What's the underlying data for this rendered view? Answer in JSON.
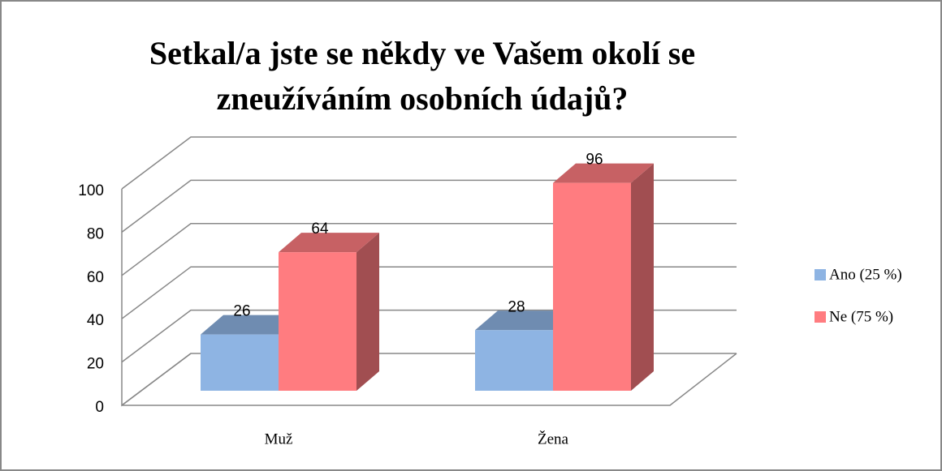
{
  "chart_data": {
    "type": "bar3d",
    "title": [
      "Setkal/a jste se někdy ve Vašem okolí se",
      "zneužíváním osobních údajů?"
    ],
    "categories": [
      "Muž",
      "Žena"
    ],
    "series": [
      {
        "name": "Ano (25 %)",
        "color": "#8eb4e3",
        "values": [
          26,
          28
        ]
      },
      {
        "name": "Ne (75 %)",
        "color": "#ff7c80",
        "values": [
          64,
          96
        ]
      }
    ],
    "ylim": [
      0,
      100
    ],
    "yticks": [
      0,
      20,
      40,
      60,
      80,
      100
    ],
    "grid": true,
    "legend": "right"
  }
}
